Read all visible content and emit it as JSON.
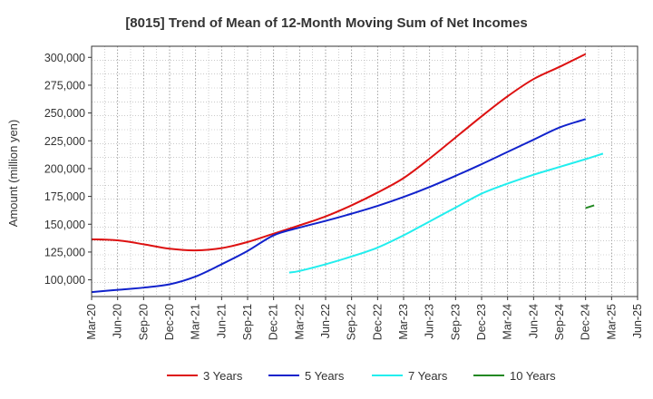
{
  "chart_data": {
    "type": "line",
    "title": "[8015]  Trend of Mean of 12-Month Moving Sum of Net Incomes",
    "xlabel": "",
    "ylabel": "Amount (million yen)",
    "x_tick_labels": [
      "Mar-20",
      "Jun-20",
      "Sep-20",
      "Dec-20",
      "Mar-21",
      "Jun-21",
      "Sep-21",
      "Dec-21",
      "Mar-22",
      "Jun-22",
      "Sep-22",
      "Dec-22",
      "Mar-23",
      "Jun-23",
      "Sep-23",
      "Dec-23",
      "Mar-24",
      "Jun-24",
      "Sep-24",
      "Dec-24",
      "Mar-25",
      "Jun-25"
    ],
    "y_tick_labels": [
      "100,000",
      "125,000",
      "150,000",
      "175,000",
      "200,000",
      "225,000",
      "250,000",
      "275,000",
      "300,000"
    ],
    "y_ticks": [
      100000,
      125000,
      150000,
      175000,
      200000,
      225000,
      250000,
      275000,
      300000
    ],
    "ylim": [
      85000,
      310000
    ],
    "grid": true,
    "legend_position": "bottom",
    "series": [
      {
        "name": "3 Years",
        "color": "#dd1111",
        "points": [
          [
            0,
            136500
          ],
          [
            1,
            135500
          ],
          [
            2,
            132000
          ],
          [
            3,
            128000
          ],
          [
            4,
            126500
          ],
          [
            5,
            128500
          ],
          [
            6,
            134000
          ],
          [
            7,
            141500
          ],
          [
            8,
            149000
          ],
          [
            9,
            157000
          ],
          [
            10,
            167000
          ],
          [
            11,
            178500
          ],
          [
            12,
            191500
          ],
          [
            13,
            209000
          ],
          [
            14,
            228000
          ],
          [
            15,
            247000
          ],
          [
            16,
            265000
          ],
          [
            17,
            280500
          ],
          [
            18,
            291500
          ],
          [
            19,
            303000
          ]
        ]
      },
      {
        "name": "5 Years",
        "color": "#1122cc",
        "points": [
          [
            0,
            89000
          ],
          [
            1,
            91000
          ],
          [
            2,
            93000
          ],
          [
            3,
            96000
          ],
          [
            4,
            103000
          ],
          [
            5,
            114000
          ],
          [
            6,
            126000
          ],
          [
            7,
            140000
          ],
          [
            8,
            147000
          ],
          [
            9,
            153000
          ],
          [
            10,
            159500
          ],
          [
            11,
            166500
          ],
          [
            12,
            174500
          ],
          [
            13,
            183500
          ],
          [
            14,
            193500
          ],
          [
            15,
            204000
          ],
          [
            16,
            215000
          ],
          [
            17,
            226000
          ],
          [
            18,
            237000
          ],
          [
            19,
            244500
          ]
        ]
      },
      {
        "name": "7 Years",
        "color": "#22eeee",
        "points": [
          [
            7.6,
            106500
          ],
          [
            8,
            108000
          ],
          [
            9,
            114000
          ],
          [
            10,
            121000
          ],
          [
            11,
            129000
          ],
          [
            12,
            140000
          ],
          [
            13,
            152500
          ],
          [
            14,
            165000
          ],
          [
            15,
            177500
          ],
          [
            16,
            186500
          ],
          [
            17,
            194500
          ],
          [
            18,
            201500
          ],
          [
            19,
            208500
          ],
          [
            19.67,
            213500
          ]
        ]
      },
      {
        "name": "10 Years",
        "color": "#228822",
        "points": [
          [
            19,
            164500
          ],
          [
            19.33,
            167000
          ]
        ]
      }
    ]
  }
}
